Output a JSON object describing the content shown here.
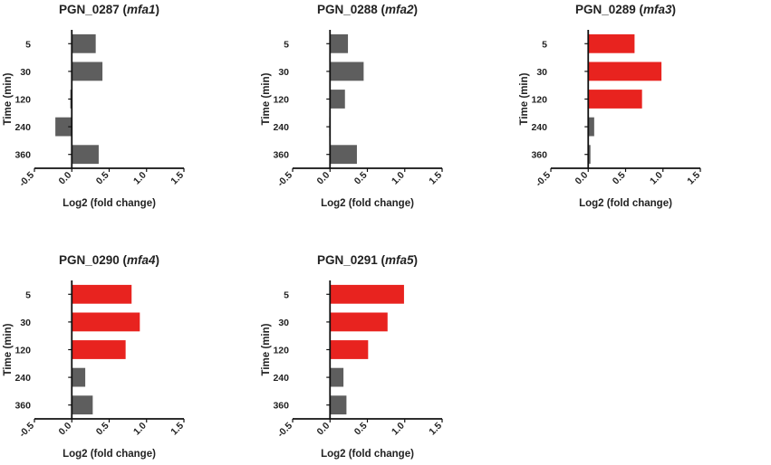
{
  "figure": {
    "colors": {
      "up": "#e8231f",
      "neutral": "#5e5e5e",
      "axis": "#111111"
    }
  },
  "chart_data": [
    {
      "type": "bar",
      "orientation": "horizontal",
      "title_prefix": "PGN_0287 (",
      "title_gene": "mfa1",
      "title_suffix": ")",
      "xlabel": "Log2 (fold change)",
      "ylabel": "Time (min)",
      "categories": [
        "5",
        "30",
        "120",
        "240",
        "360"
      ],
      "values": [
        0.32,
        0.41,
        -0.02,
        -0.22,
        0.36
      ],
      "highlight": [
        false,
        false,
        false,
        false,
        false
      ],
      "xlim": [
        -0.5,
        1.5
      ],
      "xticks": [
        "-0.5",
        "0.0",
        "0.5",
        "1.0",
        "1.5"
      ]
    },
    {
      "type": "bar",
      "orientation": "horizontal",
      "title_prefix": "PGN_0288 (",
      "title_gene": "mfa2",
      "title_suffix": ")",
      "xlabel": "Log2 (fold change)",
      "ylabel": "Time (min)",
      "categories": [
        "5",
        "30",
        "120",
        "240",
        "360"
      ],
      "values": [
        0.24,
        0.45,
        0.2,
        -0.01,
        0.36
      ],
      "highlight": [
        false,
        false,
        false,
        false,
        false
      ],
      "xlim": [
        -0.5,
        1.5
      ],
      "xticks": [
        "-0.5",
        "0.0",
        "0.5",
        "1.0",
        "1.5"
      ]
    },
    {
      "type": "bar",
      "orientation": "horizontal",
      "title_prefix": "PGN_0289 (",
      "title_gene": "mfa3",
      "title_suffix": ")",
      "xlabel": "Log2 (fold change)",
      "ylabel": "Time (min)",
      "categories": [
        "5",
        "30",
        "120",
        "240",
        "360"
      ],
      "values": [
        0.62,
        0.98,
        0.72,
        0.08,
        0.03
      ],
      "highlight": [
        true,
        true,
        true,
        false,
        false
      ],
      "xlim": [
        -0.5,
        1.5
      ],
      "xticks": [
        "-0.5",
        "0.0",
        "0.5",
        "1.0",
        "1.5"
      ]
    },
    {
      "type": "bar",
      "orientation": "horizontal",
      "title_prefix": "PGN_0290 (",
      "title_gene": "mfa4",
      "title_suffix": ")",
      "xlabel": "Log2 (fold change)",
      "ylabel": "Time (min)",
      "categories": [
        "5",
        "30",
        "120",
        "240",
        "360"
      ],
      "values": [
        0.8,
        0.91,
        0.72,
        0.18,
        0.28
      ],
      "highlight": [
        true,
        true,
        true,
        false,
        false
      ],
      "xlim": [
        -0.5,
        1.5
      ],
      "xticks": [
        "-0.5",
        "0.0",
        "0.5",
        "1.0",
        "1.5"
      ]
    },
    {
      "type": "bar",
      "orientation": "horizontal",
      "title_prefix": "PGN_0291 (",
      "title_gene": "mfa5",
      "title_suffix": ")",
      "xlabel": "Log2 (fold change)",
      "ylabel": "Time (min)",
      "categories": [
        "5",
        "30",
        "120",
        "240",
        "360"
      ],
      "values": [
        0.99,
        0.77,
        0.51,
        0.18,
        0.22
      ],
      "highlight": [
        true,
        true,
        true,
        false,
        false
      ],
      "xlim": [
        -0.5,
        1.5
      ],
      "xticks": [
        "-0.5",
        "0.0",
        "0.5",
        "1.0",
        "1.5"
      ]
    }
  ]
}
